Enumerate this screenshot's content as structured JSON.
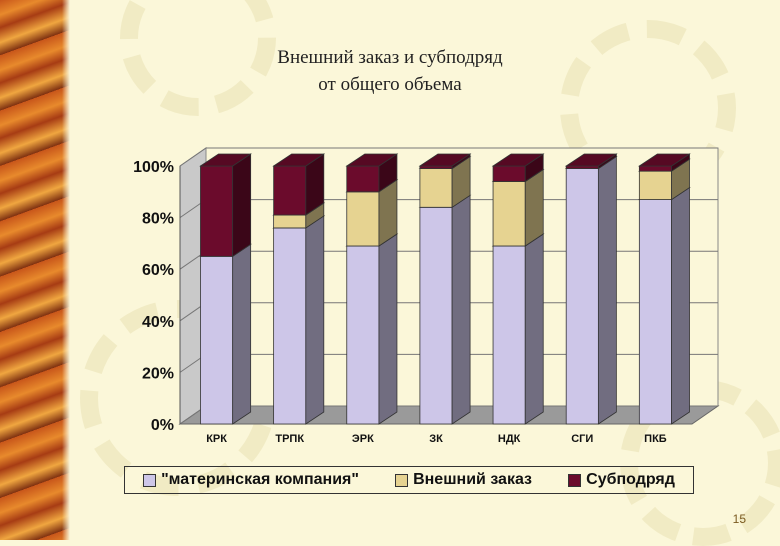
{
  "slide": {
    "title_line1": "Внешний заказ и субподряд",
    "title_line2": "от общего объема",
    "page_number": "15"
  },
  "colors": {
    "series": [
      "#cdc6e8",
      "#e6d391",
      "#6b0b2c"
    ],
    "background": "#fbf7d9"
  },
  "chart_data": {
    "type": "bar",
    "stacked": "percent",
    "categories": [
      "КРК",
      "ТРПК",
      "ЭРК",
      "ЗК",
      "НДК",
      "СГИ",
      "ПКБ"
    ],
    "series": [
      {
        "name": "\"материнская компания\"",
        "values": [
          65,
          76,
          69,
          84,
          69,
          99,
          87
        ]
      },
      {
        "name": "Внешний заказ",
        "values": [
          0,
          5,
          21,
          15,
          25,
          0,
          11
        ]
      },
      {
        "name": "Субподряд",
        "values": [
          35,
          19,
          10,
          1,
          6,
          1,
          2
        ]
      }
    ],
    "yticks": [
      "0%",
      "20%",
      "40%",
      "60%",
      "80%",
      "100%"
    ],
    "ylim": [
      0,
      100
    ],
    "grid": true,
    "legend_position": "bottom"
  }
}
